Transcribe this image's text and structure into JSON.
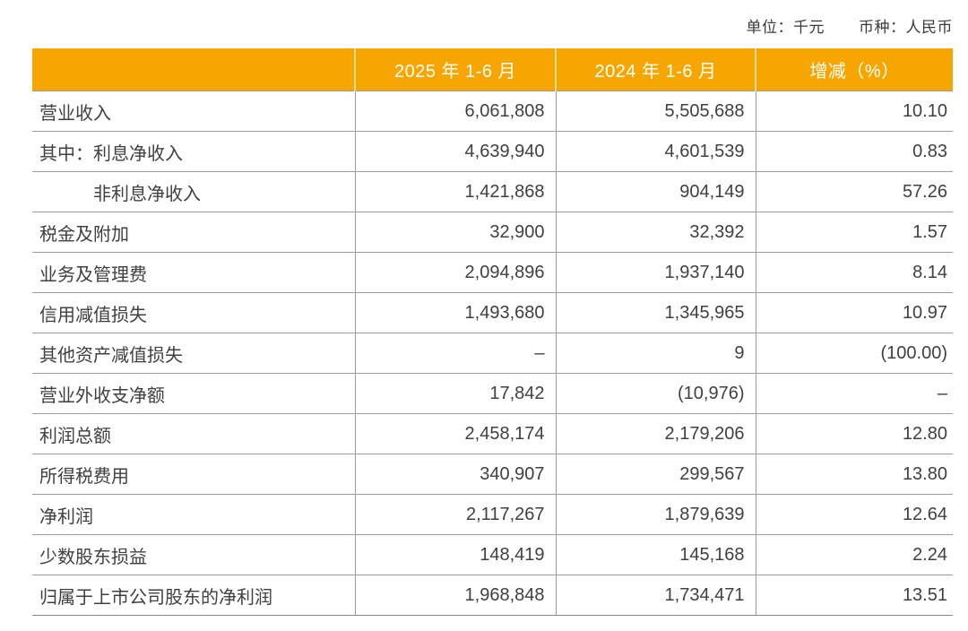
{
  "meta": {
    "unit_label": "单位：千元",
    "currency_label": "币种：人民币"
  },
  "colors": {
    "header_bg": "#F7A600",
    "header_text": "#FFFFFF",
    "body_text": "#404040",
    "grid_line": "#9B9B9B"
  },
  "table": {
    "columns": [
      "",
      "2025 年 1-6 月",
      "2024 年 1-6 月",
      "增减（%）"
    ],
    "rows": [
      {
        "label": "营业收入",
        "indent": false,
        "v2025": "6,061,808",
        "v2024": "5,505,688",
        "change": "10.10"
      },
      {
        "label": "其中：利息净收入",
        "indent": false,
        "v2025": "4,639,940",
        "v2024": "4,601,539",
        "change": "0.83"
      },
      {
        "label": "非利息净收入",
        "indent": true,
        "v2025": "1,421,868",
        "v2024": "904,149",
        "change": "57.26"
      },
      {
        "label": "税金及附加",
        "indent": false,
        "v2025": "32,900",
        "v2024": "32,392",
        "change": "1.57"
      },
      {
        "label": "业务及管理费",
        "indent": false,
        "v2025": "2,094,896",
        "v2024": "1,937,140",
        "change": "8.14"
      },
      {
        "label": "信用减值损失",
        "indent": false,
        "v2025": "1,493,680",
        "v2024": "1,345,965",
        "change": "10.97"
      },
      {
        "label": "其他资产减值损失",
        "indent": false,
        "v2025": "–",
        "v2024": "9",
        "change": "(100.00)"
      },
      {
        "label": "营业外收支净额",
        "indent": false,
        "v2025": "17,842",
        "v2024": "(10,976)",
        "change": "–"
      },
      {
        "label": "利润总额",
        "indent": false,
        "v2025": "2,458,174",
        "v2024": "2,179,206",
        "change": "12.80"
      },
      {
        "label": "所得税费用",
        "indent": false,
        "v2025": "340,907",
        "v2024": "299,567",
        "change": "13.80"
      },
      {
        "label": "净利润",
        "indent": false,
        "v2025": "2,117,267",
        "v2024": "1,879,639",
        "change": "12.64"
      },
      {
        "label": "少数股东损益",
        "indent": false,
        "v2025": "148,419",
        "v2024": "145,168",
        "change": "2.24"
      },
      {
        "label": "归属于上市公司股东的净利润",
        "indent": false,
        "v2025": "1,968,848",
        "v2024": "1,734,471",
        "change": "13.51"
      }
    ]
  }
}
